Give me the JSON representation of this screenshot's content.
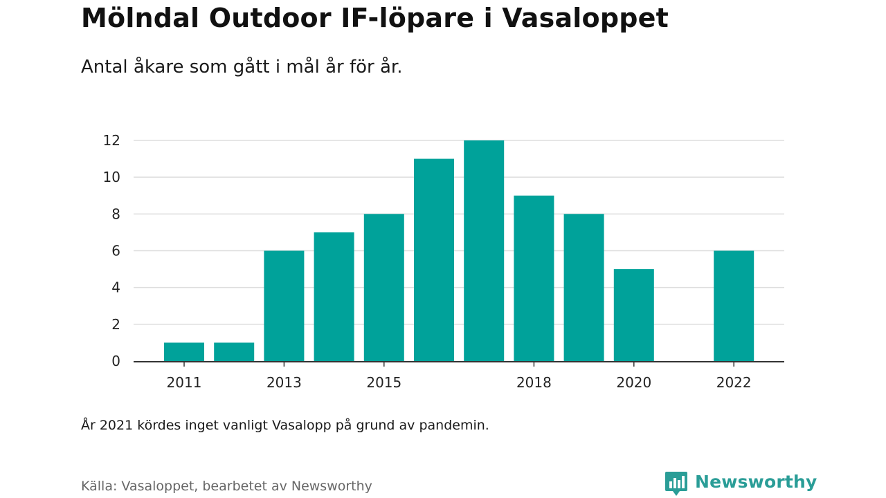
{
  "header": {
    "title": "Mölndal Outdoor IF-löpare i Vasaloppet",
    "subtitle": "Antal åkare som gått i mål år för år."
  },
  "footer": {
    "note": "År 2021 kördes inget vanligt Vasalopp på grund av pandemin.",
    "source": "Källa: Vasaloppet, bearbetet av Newsworthy",
    "brand": "Newsworthy",
    "brand_icon": "newsworthy-logo-icon"
  },
  "colors": {
    "bar": "#00a29a",
    "grid": "#dddddd",
    "axis": "#333333",
    "brand": "#2a9d97"
  },
  "chart_data": {
    "type": "bar",
    "x": [
      2011,
      2012,
      2013,
      2014,
      2015,
      2016,
      2017,
      2018,
      2019,
      2020,
      2021,
      2022
    ],
    "values": [
      1,
      1,
      6,
      7,
      8,
      11,
      12,
      9,
      8,
      5,
      null,
      6
    ],
    "x_tick_labels": [
      "2011",
      "2013",
      "2015",
      "2018",
      "2020",
      "2022"
    ],
    "y_ticks": [
      0,
      2,
      4,
      6,
      8,
      10,
      12
    ],
    "ylim": [
      0,
      12
    ],
    "grid": true,
    "legend": "none"
  }
}
